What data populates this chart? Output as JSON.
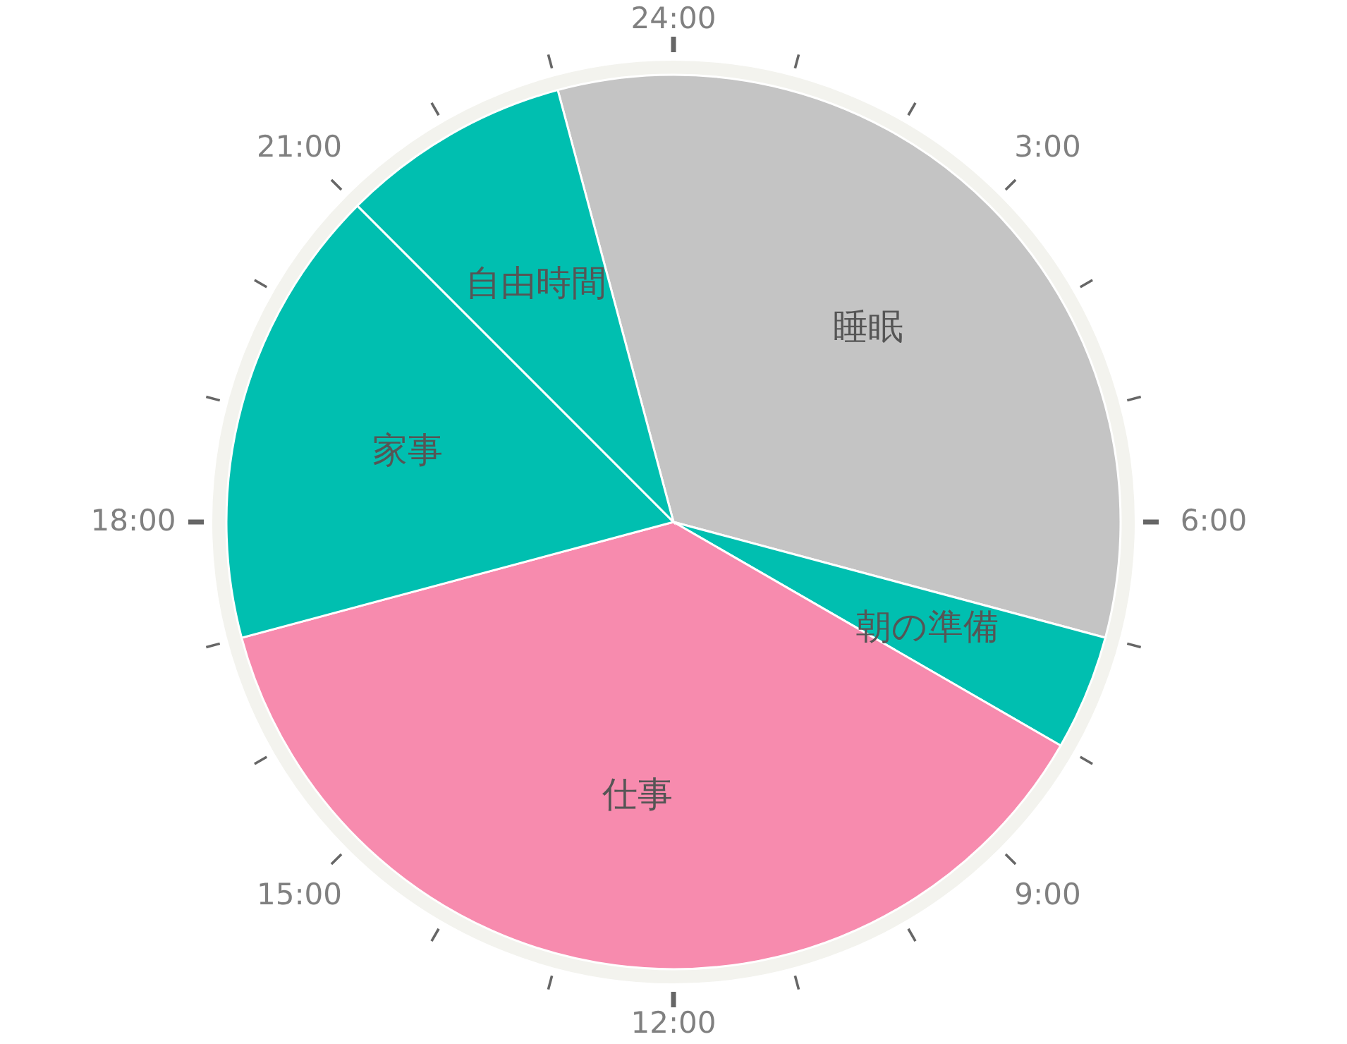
{
  "chart_data": {
    "type": "pie",
    "categories": [
      "睡眠",
      "朝の準備",
      "仕事",
      "家事",
      "自由時間"
    ],
    "values": [
      33.33,
      4.17,
      37.5,
      16.67,
      8.33
    ],
    "colors": [
      "#c4c4c4",
      "#00bfb0",
      "#f78bae",
      "#00bfb0",
      "#00bfb0"
    ],
    "annotations": [
      "24:00",
      "3:00",
      "6:00",
      "9:00",
      "12:00",
      "15:00",
      "18:00",
      "21:00"
    ]
  }
}
